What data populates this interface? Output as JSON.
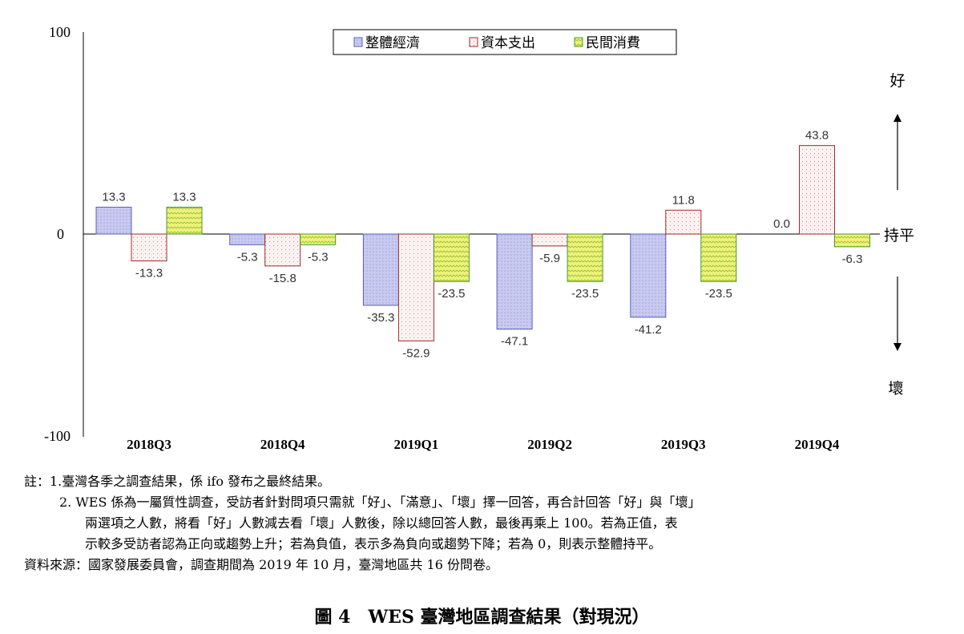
{
  "chart_data": {
    "type": "bar",
    "categories": [
      "2018Q3",
      "2018Q4",
      "2019Q1",
      "2019Q2",
      "2019Q3",
      "2019Q4"
    ],
    "series": [
      {
        "name": "整體經濟",
        "color": "#c8caf0",
        "border": "#5a5fb8",
        "pattern": "dots-fine",
        "values": [
          13.3,
          -5.3,
          -35.3,
          -47.1,
          -41.2,
          0.0
        ],
        "labels": [
          "13.3",
          "-5.3",
          "-35.3",
          "-47.1",
          "-41.2",
          "0.0"
        ]
      },
      {
        "name": "資本支出",
        "color": "#fdf4f4",
        "border": "#a02a2a",
        "pattern": "dots-red",
        "values": [
          -13.3,
          -15.8,
          -52.9,
          -5.9,
          11.8,
          43.8
        ],
        "labels": [
          "-13.3",
          "-15.8",
          "-52.9",
          "-5.9",
          "11.8",
          "43.8"
        ]
      },
      {
        "name": "民間消費",
        "color": "#ecf06a",
        "border": "#4a9a2a",
        "pattern": "zigzag",
        "values": [
          13.3,
          -5.3,
          -23.5,
          -23.5,
          -23.5,
          -6.3
        ],
        "labels": [
          "13.3",
          "-5.3",
          "-23.5",
          "-23.5",
          "-23.5",
          "-6.3"
        ]
      }
    ],
    "ylim": [
      -100,
      100
    ],
    "yticks": [
      "100",
      "0",
      "-100"
    ],
    "legend_position": "top",
    "side_labels": {
      "up": "好",
      "zero": "持平",
      "down": "壞"
    }
  },
  "notes": {
    "line1": "註：1.臺灣各季之調查結果，係 ifo 發布之最終結果。",
    "line2": "2. WES 係為一屬質性調查，受訪者針對問項只需就「好」、「滿意」、「壞」擇一回答，再合計回答「好」與「壞」",
    "line3": "兩選項之人數，將看「好」人數減去看「壞」人數後，除以總回答人數，最後再乘上 100。若為正值，表",
    "line4": "示較多受訪者認為正向或趨勢上升；若為負值，表示多為負向或趨勢下降；若為 0，則表示整體持平。",
    "line5": "資料來源：國家發展委員會，調查期間為 2019 年 10 月，臺灣地區共 16 份問卷。"
  },
  "figure_title": "圖 4　WES 臺灣地區調查結果（對現況）"
}
